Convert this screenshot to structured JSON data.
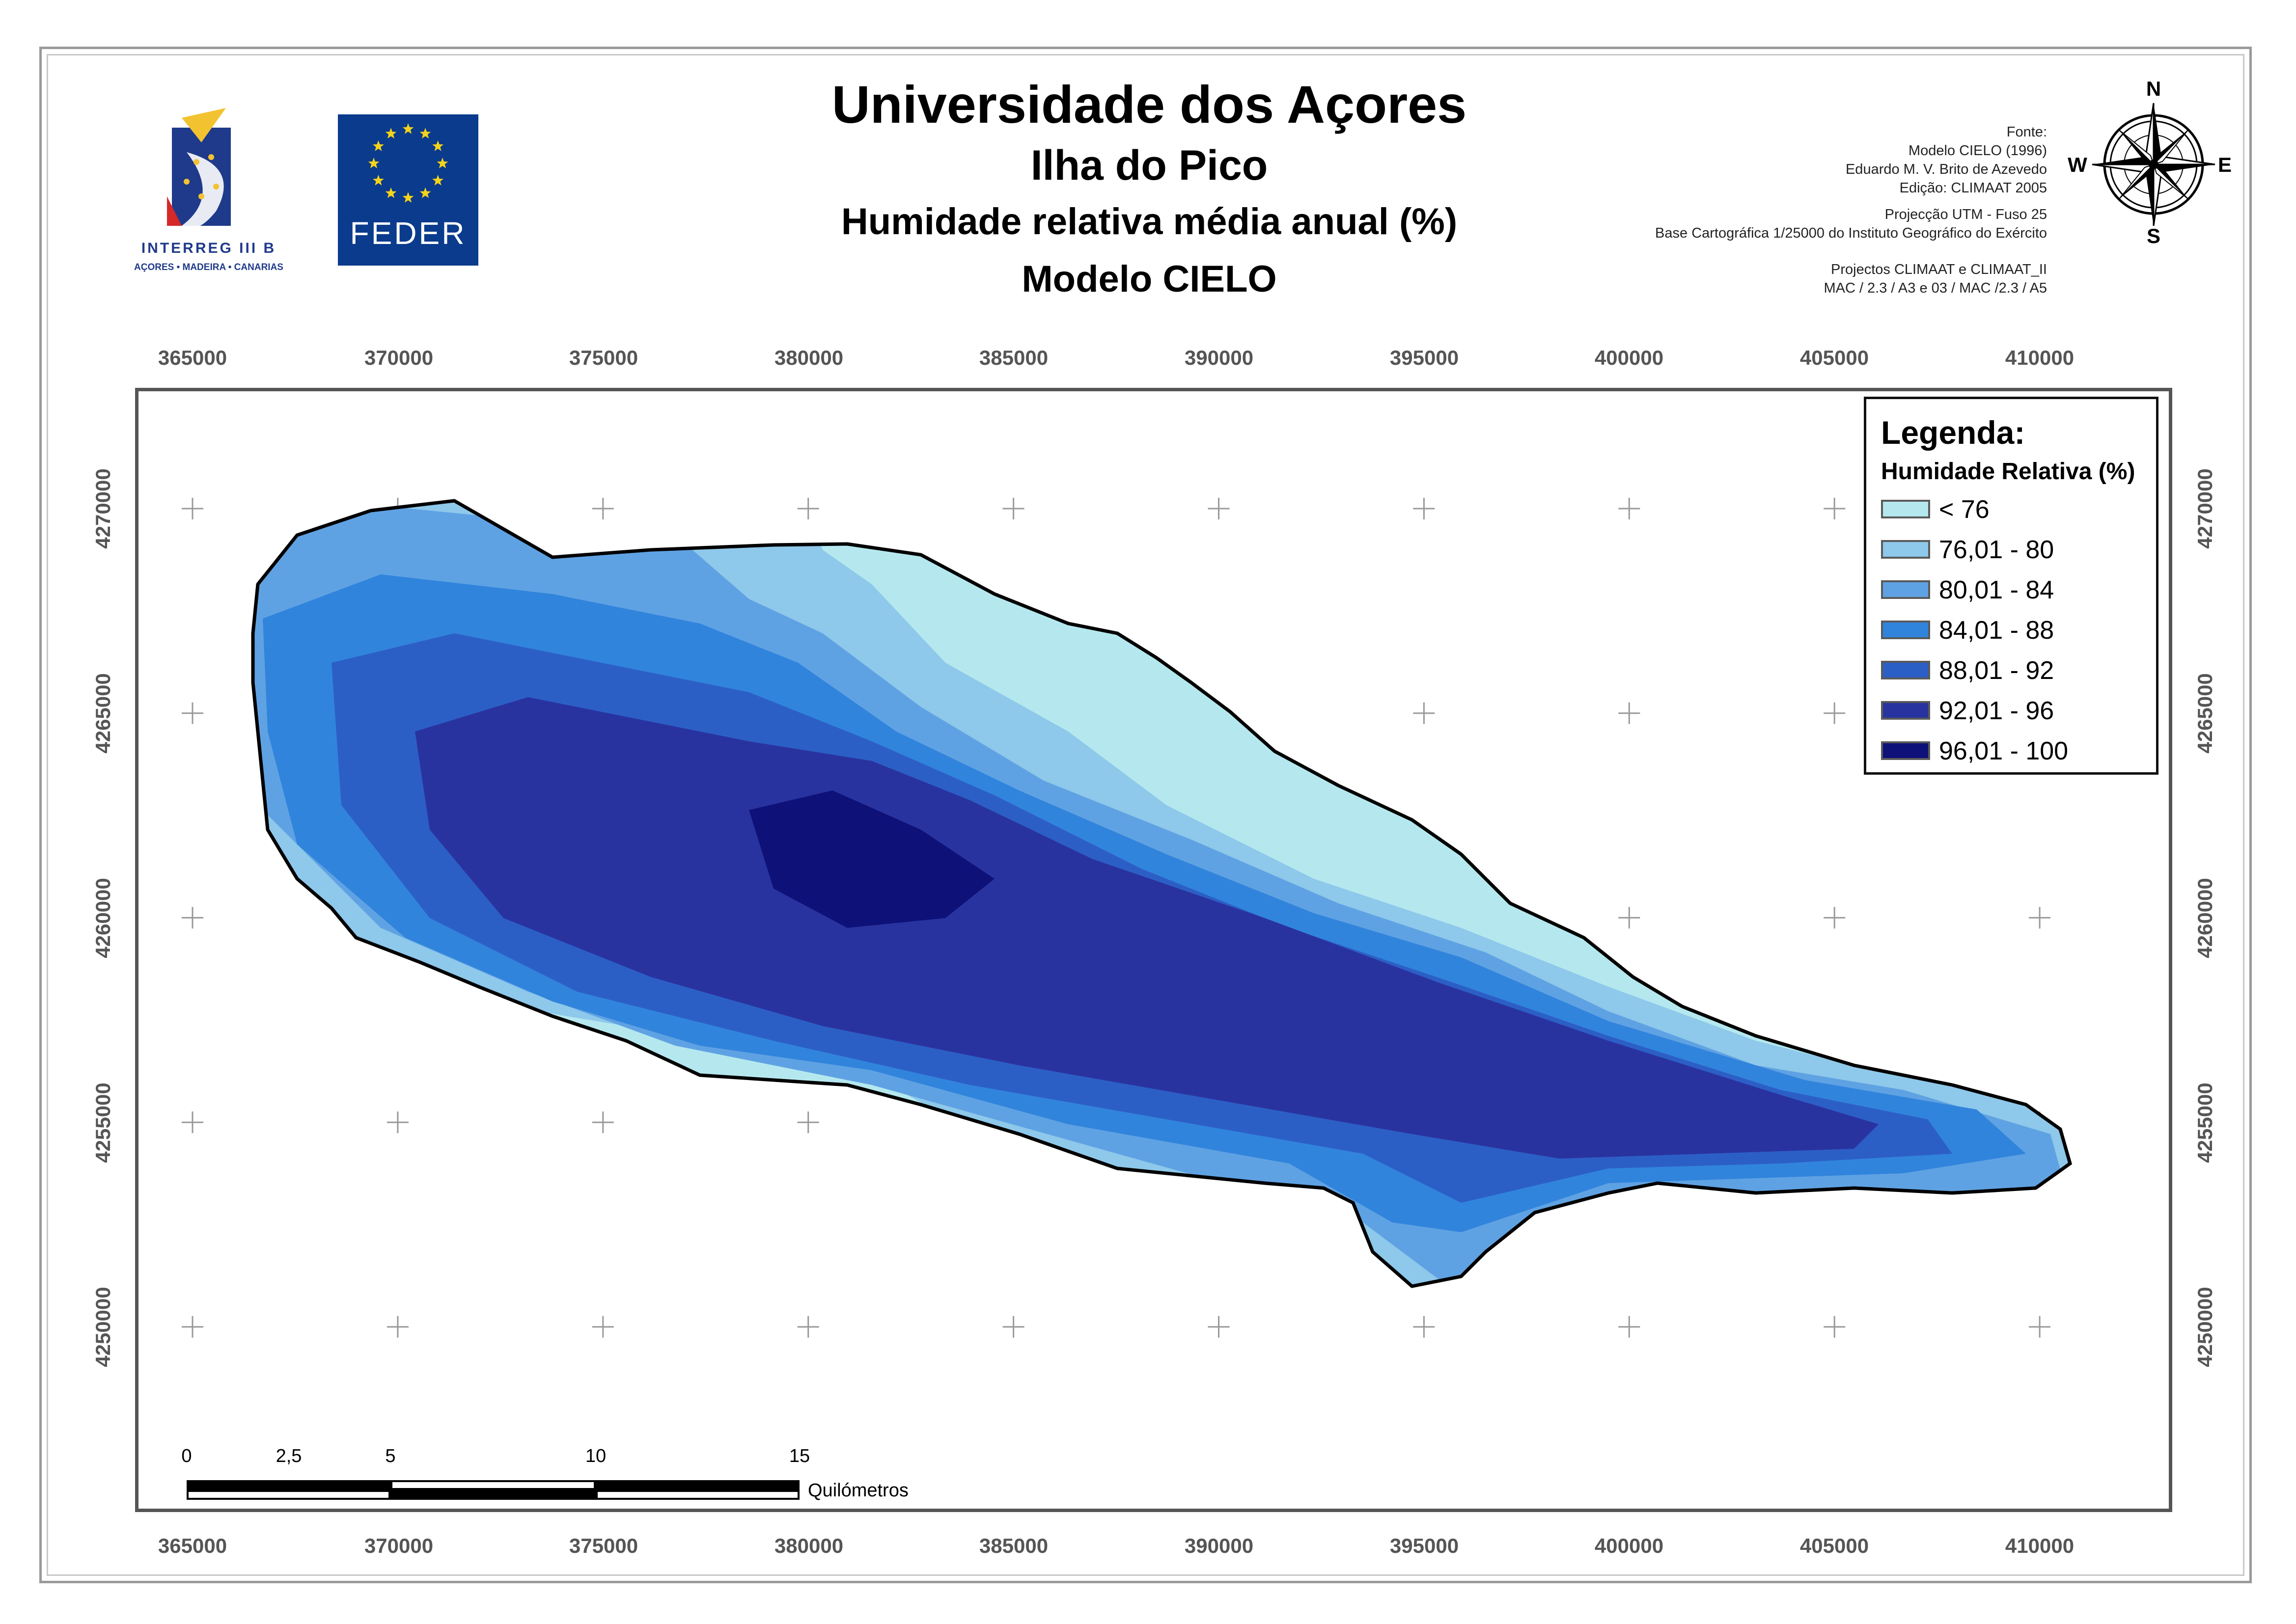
{
  "header": {
    "title": "Universidade dos Açores",
    "island": "Ilha do Pico",
    "subject": "Humidade relativa média anual (%)",
    "model": "Modelo CIELO"
  },
  "logos": {
    "interreg_text": "INTERREG III B",
    "interreg_sub": "AÇORES • MADEIRA • CANARIAS",
    "feder_text": "FEDER"
  },
  "source": {
    "lines_1": [
      "Fonte:",
      "Modelo CIELO (1996)",
      "Eduardo M. V. Brito de Azevedo",
      "Edição: CLIMAAT 2005"
    ],
    "lines_2": [
      "Projecção UTM - Fuso 25",
      "Base Cartográfica 1/25000 do Instituto Geográfico do Exército"
    ],
    "lines_3": [
      "Projectos CLIMAAT e CLIMAAT_II",
      "MAC / 2.3 / A3 e 03 / MAC /2.3 / A5"
    ]
  },
  "compass": {
    "north": "N",
    "south": "S",
    "east": "E",
    "west": "W"
  },
  "axes": {
    "x_ticks": [
      "365000",
      "370000",
      "375000",
      "380000",
      "385000",
      "390000",
      "395000",
      "400000",
      "405000",
      "410000"
    ],
    "y_ticks": [
      "4270000",
      "4265000",
      "4260000",
      "4255000",
      "4250000"
    ]
  },
  "legend": {
    "title": "Legenda:",
    "subtitle": "Humidade Relativa (%)",
    "items": [
      {
        "label": "< 76",
        "color": "#b4e8ee"
      },
      {
        "label": "76,01 - 80",
        "color": "#8ec8ea"
      },
      {
        "label": "80,01 - 84",
        "color": "#5fa2e3"
      },
      {
        "label": "84,01 - 88",
        "color": "#3184dc"
      },
      {
        "label": "88,01 - 92",
        "color": "#2c5fc6"
      },
      {
        "label": "92,01 - 96",
        "color": "#29339f"
      },
      {
        "label": "96,01 - 100",
        "color": "#0e1178"
      }
    ]
  },
  "scalebar": {
    "labels": [
      "0",
      "2,5",
      "5",
      "10",
      "15"
    ],
    "unit": "Quilómetros"
  }
}
